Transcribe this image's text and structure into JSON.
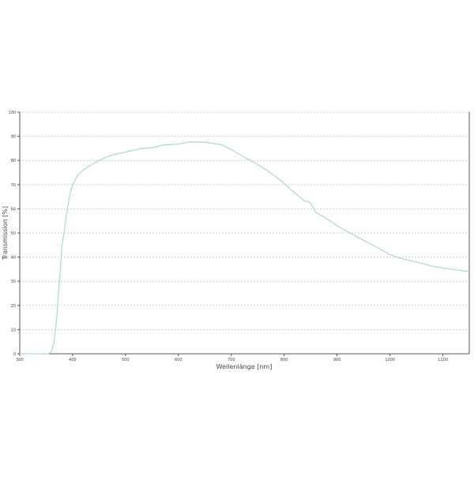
{
  "chart_data": {
    "type": "line",
    "title": "",
    "xlabel": "Wellenlänge [nm]",
    "ylabel": "Transmission [%]",
    "xlim": [
      300,
      1150
    ],
    "ylim": [
      0,
      100
    ],
    "xticks": [
      300,
      400,
      500,
      600,
      700,
      800,
      900,
      1000,
      1100
    ],
    "yticks": [
      0,
      10,
      20,
      30,
      40,
      50,
      60,
      70,
      80,
      90,
      100
    ],
    "grid": "horizontal dotted",
    "line_color": "#a9d6da",
    "series": [
      {
        "x": [
          300,
          330,
          355,
          360,
          365,
          370,
          375,
          380,
          385,
          390,
          395,
          400,
          410,
          420,
          430,
          450,
          470,
          490,
          510,
          530,
          550,
          570,
          600,
          620,
          640,
          660,
          680,
          700,
          720,
          740,
          760,
          780,
          800,
          820,
          840,
          845,
          850,
          860,
          880,
          900,
          920,
          950,
          980,
          1000,
          1020,
          1050,
          1080,
          1100,
          1150
        ],
        "y": [
          0,
          0,
          0,
          1,
          5,
          15,
          30,
          45,
          52,
          60,
          66,
          70,
          74,
          76,
          77.5,
          80,
          82,
          83,
          84,
          85,
          85.3,
          86.3,
          86.8,
          87.6,
          87.7,
          87.3,
          86.6,
          84.5,
          82,
          79.5,
          77,
          74,
          70.5,
          66.5,
          63,
          63.2,
          62.3,
          58.5,
          56,
          53,
          50.5,
          47,
          43.5,
          41,
          39.5,
          38,
          36.3,
          35.5,
          34
        ]
      }
    ]
  }
}
